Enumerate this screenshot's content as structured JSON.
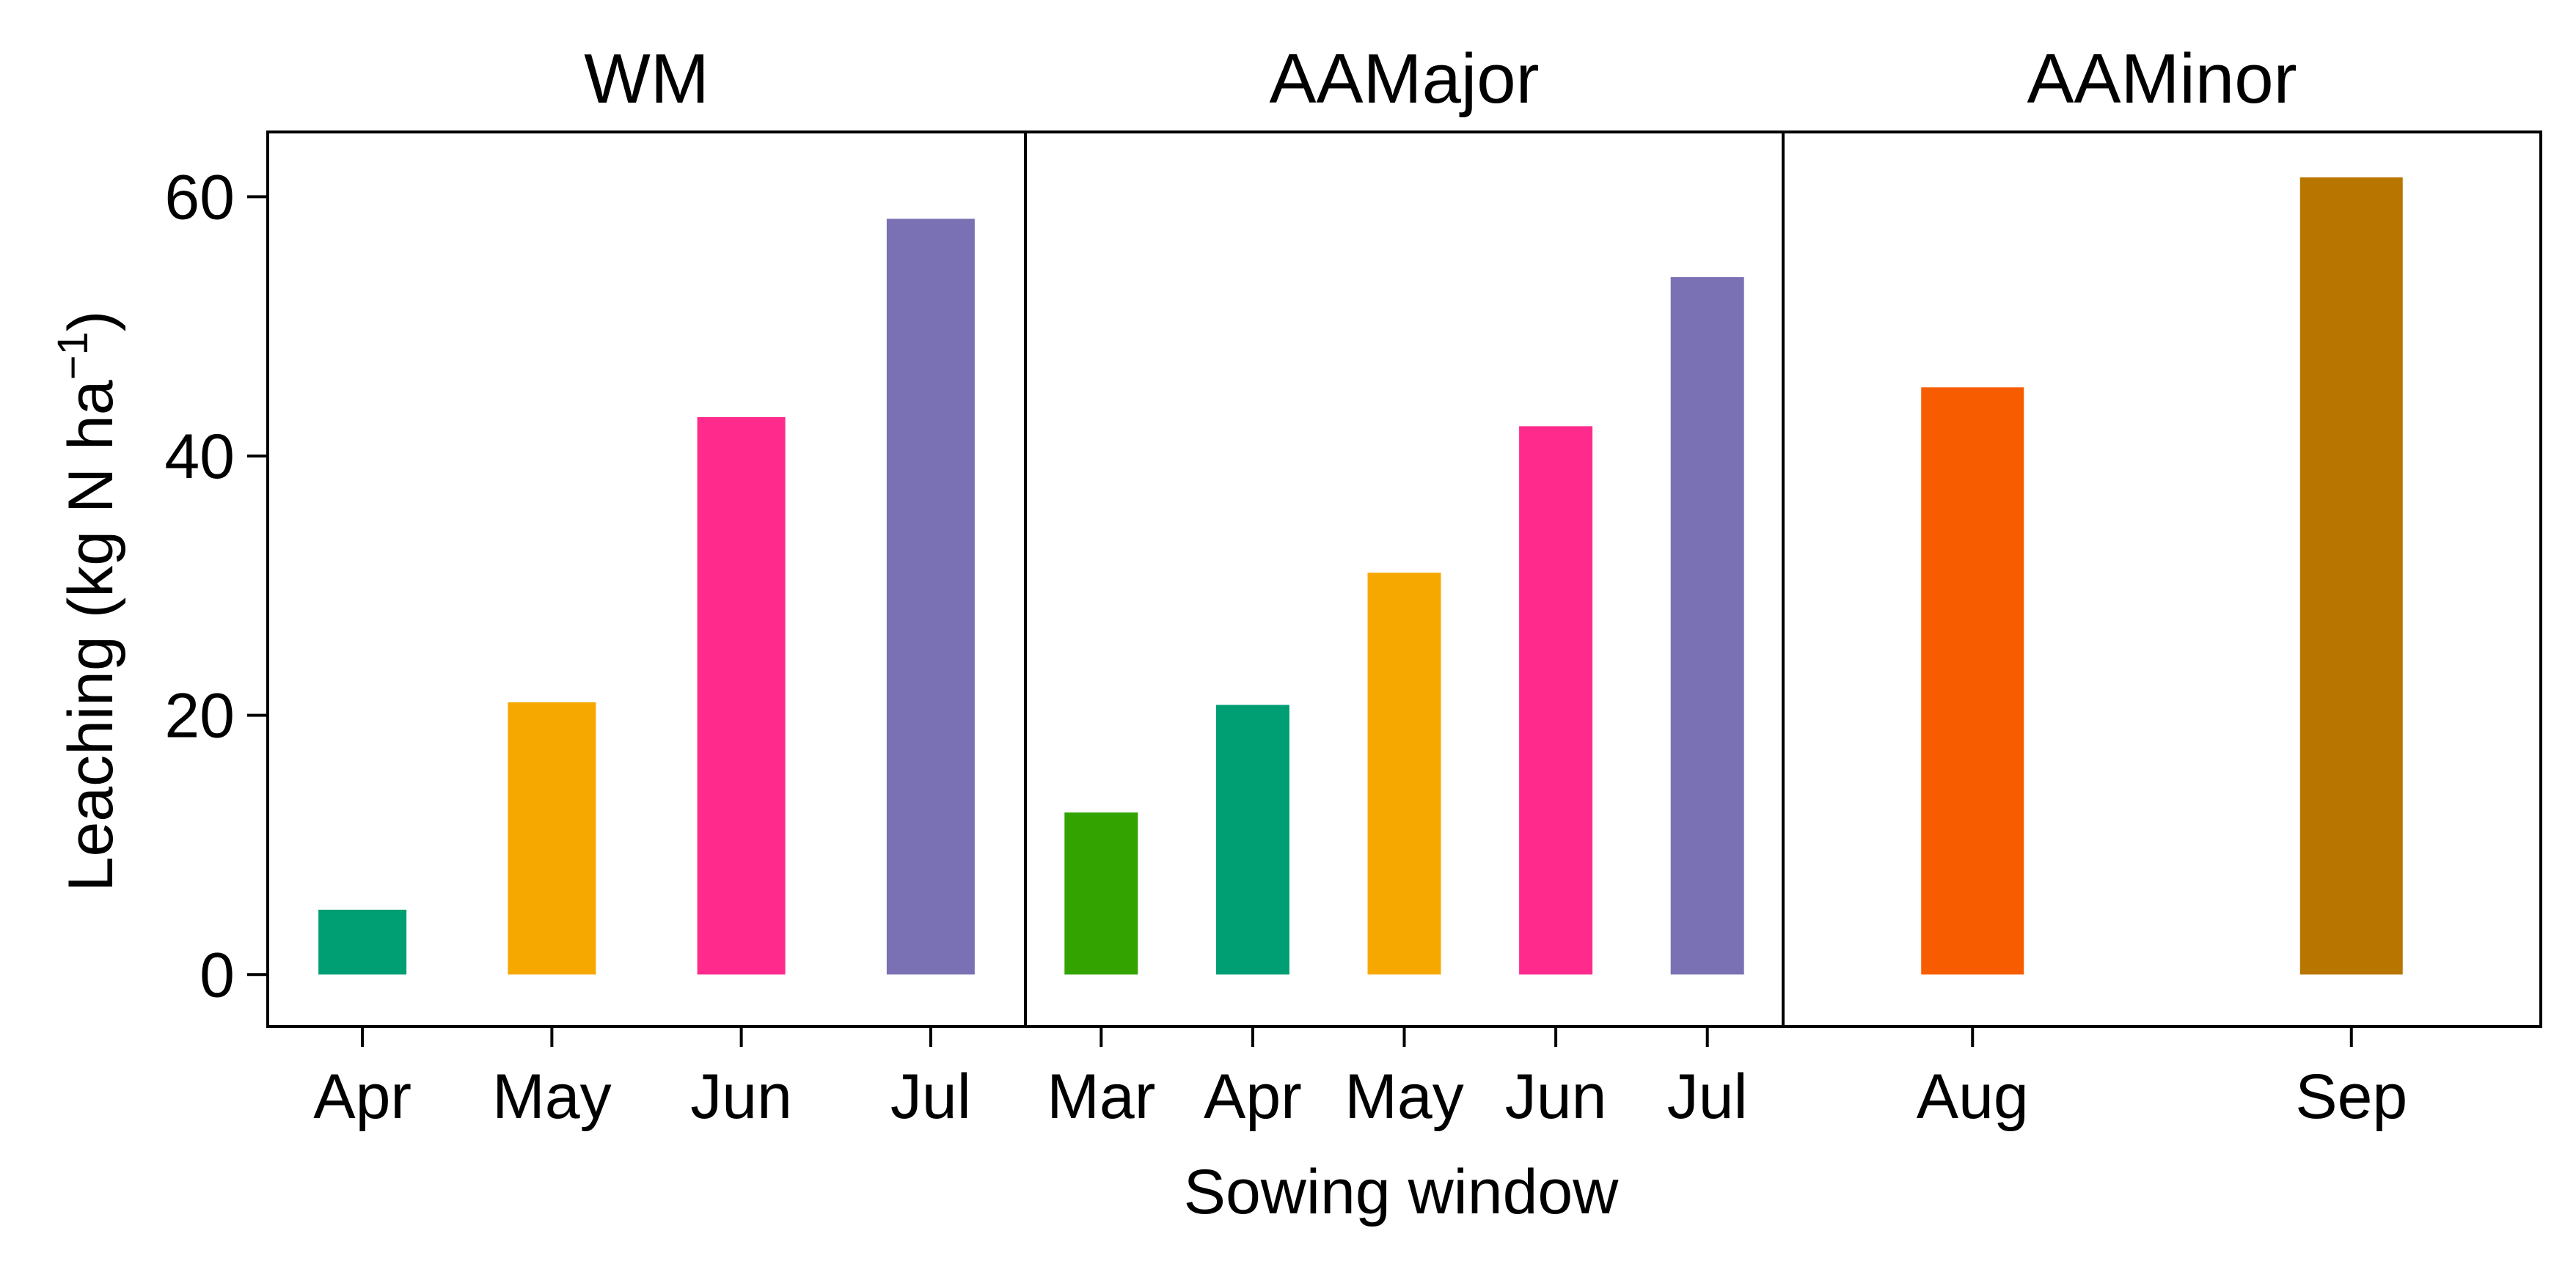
{
  "chart_data": {
    "type": "bar",
    "xlabel": "Sowing window",
    "ylabel_prefix": "Leaching (kg N ha",
    "ylabel_exponent": "−1",
    "ylabel_suffix": ")",
    "ylim": [
      -4,
      65
    ],
    "yticks": [
      0,
      20,
      40,
      60
    ],
    "grid": false,
    "panels": [
      {
        "title": "WM",
        "categories": [
          "Apr",
          "May",
          "Jun",
          "Jul"
        ],
        "values": [
          5.0,
          21.0,
          43.0,
          58.3
        ],
        "colors": [
          "#009E73",
          "#F7A800",
          "#FF2A8C",
          "#7A71B5"
        ]
      },
      {
        "title": "AAMajor",
        "categories": [
          "Mar",
          "Apr",
          "May",
          "Jun",
          "Jul"
        ],
        "values": [
          12.5,
          20.8,
          31.0,
          42.3,
          53.8
        ],
        "colors": [
          "#33A300",
          "#009E73",
          "#F7A800",
          "#FF2A8C",
          "#7A71B5"
        ]
      },
      {
        "title": "AAMinor",
        "categories": [
          "Aug",
          "Sep"
        ],
        "values": [
          45.3,
          61.5
        ],
        "colors": [
          "#F75D00",
          "#B87500"
        ]
      }
    ]
  }
}
